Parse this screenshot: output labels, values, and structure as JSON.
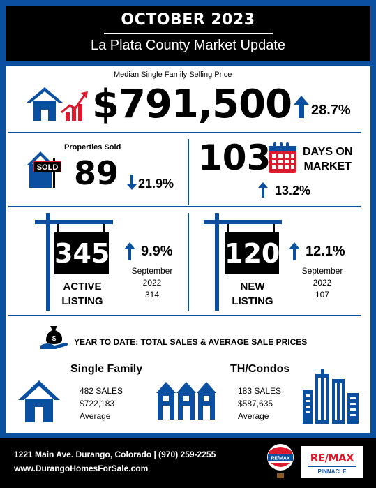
{
  "header": {
    "month": "OCTOBER 2023",
    "subtitle": "La Plata County Market Update"
  },
  "median": {
    "label": "Median Single Family Selling Price",
    "value": "$791,500",
    "change": "28.7%"
  },
  "sold": {
    "label": "Properties Sold",
    "sign": "SOLD",
    "value": "89",
    "change": "21.9%"
  },
  "dom": {
    "value": "103",
    "label_line1": "DAYS ON",
    "label_line2": "MARKET",
    "change": "13.2%"
  },
  "active": {
    "value": "345",
    "caption_line1": "ACTIVE",
    "caption_line2": "LISTING",
    "change": "9.9%",
    "comp_month": "September",
    "comp_year": "2022",
    "comp_value": "314"
  },
  "new": {
    "value": "120",
    "caption_line1": "NEW",
    "caption_line2": "LISTING",
    "change": "12.1%",
    "comp_month": "September",
    "comp_year": "2022",
    "comp_value": "107"
  },
  "ytd": {
    "title": "YEAR TO DATE: TOTAL SALES & AVERAGE SALE PRICES",
    "single": {
      "title": "Single Family",
      "sales": "482 SALES",
      "price": "$722,183",
      "avg": "Average"
    },
    "condos": {
      "title": "TH/Condos",
      "sales": "183 SALES",
      "price": "$587,635",
      "avg": "Average"
    }
  },
  "footer": {
    "address": "1221 Main Ave. Durango, Colorado | (970) 259-2255",
    "website": "www.DurangoHomesForSale.com",
    "logo_text": "RE/MAX",
    "logo_sub": "PINNACLE",
    "balloon_text": "RE/MAX"
  },
  "colors": {
    "brand_blue": "#0a4fa0",
    "remax_red": "#dc1c2e",
    "black": "#000000"
  }
}
